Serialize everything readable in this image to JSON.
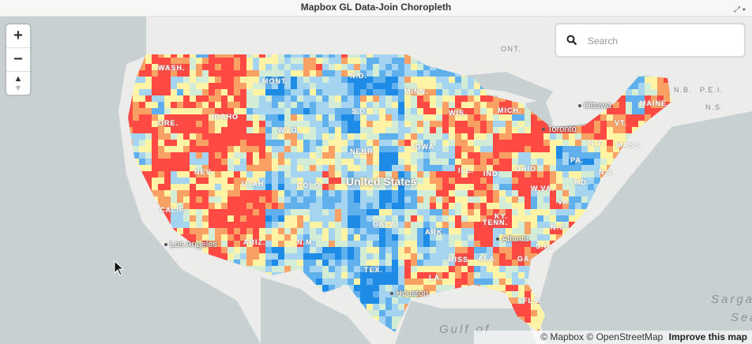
{
  "window": {
    "title": "Mapbox GL Data-Join Choropleth"
  },
  "controls": {
    "zoom_in": "+",
    "zoom_out": "−",
    "compass": "▲"
  },
  "search": {
    "placeholder": "Search",
    "value": ""
  },
  "map": {
    "country_label": "United States",
    "state_labels": [
      {
        "t": "WASH."
      },
      {
        "t": "MONT."
      },
      {
        "t": "N.D."
      },
      {
        "t": "MINN."
      },
      {
        "t": "S.D."
      },
      {
        "t": "WIS."
      },
      {
        "t": "MICH."
      },
      {
        "t": "ORE."
      },
      {
        "t": "IDAHO"
      },
      {
        "t": "WYO."
      },
      {
        "t": "IOWA"
      },
      {
        "t": "NEBR."
      },
      {
        "t": "NEV."
      },
      {
        "t": "UTAH"
      },
      {
        "t": "COLO."
      },
      {
        "t": "ILL."
      },
      {
        "t": "IND."
      },
      {
        "t": "OHIO"
      },
      {
        "t": "PA."
      },
      {
        "t": "N.Y."
      },
      {
        "t": "VT."
      },
      {
        "t": "MAINE"
      },
      {
        "t": "MASS."
      },
      {
        "t": "N.J."
      },
      {
        "t": "MD."
      },
      {
        "t": "W.VA."
      },
      {
        "t": "VA."
      },
      {
        "t": "KY."
      },
      {
        "t": "TENN."
      },
      {
        "t": "N.C."
      },
      {
        "t": "S.C."
      },
      {
        "t": "ARK."
      },
      {
        "t": "OKLA."
      },
      {
        "t": "TEX."
      },
      {
        "t": "LA."
      },
      {
        "t": "MISS."
      },
      {
        "t": "ALA."
      },
      {
        "t": "GA."
      },
      {
        "t": "FLA."
      },
      {
        "t": "CALIF."
      },
      {
        "t": "ARIZ."
      },
      {
        "t": "N.M."
      }
    ],
    "canada_labels": [
      "ONT.",
      "N.B.",
      "P.E.I.",
      "N.S."
    ],
    "cities": [
      "Ottawa",
      "Toronto",
      "Atlanta",
      "Los Angeles",
      "Houston"
    ],
    "water": [
      "Gulf of",
      "Sargasso",
      "Sea"
    ],
    "colors": {
      "red": "#ff4a44",
      "orange": "#f9a065",
      "yellow": "#fff3a6",
      "pale": "#d3ecd6",
      "lightblue": "#a4d4f0",
      "midblue": "#5fb0ec",
      "blue": "#1e8be6",
      "water": "#c8d0d2",
      "land": "#efefed"
    }
  },
  "attribution": {
    "mapbox": "© Mapbox",
    "osm": "© OpenStreetMap",
    "improve": "Improve this map"
  }
}
